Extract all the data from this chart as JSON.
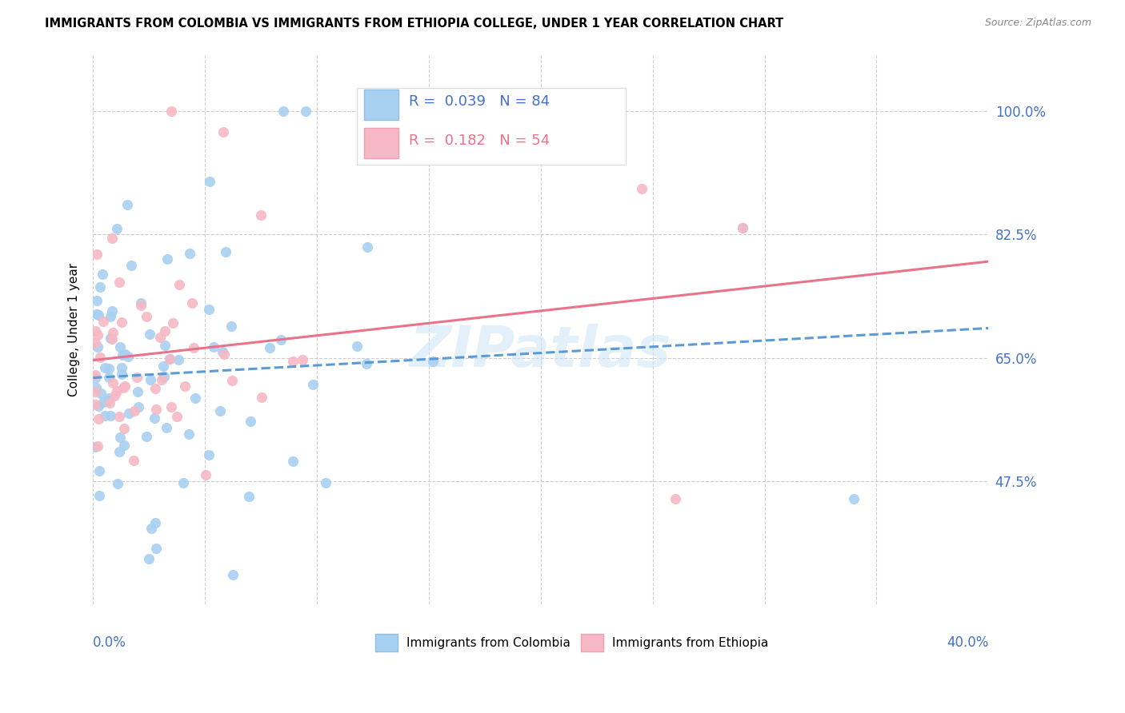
{
  "title": "IMMIGRANTS FROM COLOMBIA VS IMMIGRANTS FROM ETHIOPIA COLLEGE, UNDER 1 YEAR CORRELATION CHART",
  "source": "Source: ZipAtlas.com",
  "ylabel": "College, Under 1 year",
  "ytick_vals": [
    47.5,
    65.0,
    82.5,
    100.0
  ],
  "ytick_labels": [
    "47.5%",
    "65.0%",
    "82.5%",
    "100.0%"
  ],
  "r_colombia": 0.039,
  "n_colombia": 84,
  "r_ethiopia": 0.182,
  "n_ethiopia": 54,
  "color_colombia": "#a8d0f0",
  "color_ethiopia": "#f5b8c4",
  "line_color_colombia": "#5b9bd5",
  "line_color_ethiopia": "#e8738a",
  "watermark": "ZIPatlas",
  "background_color": "#ffffff",
  "x_min": 0.0,
  "x_max": 40.0,
  "y_min": 30.0,
  "y_max": 108.0,
  "colombia_slope": 0.08,
  "colombia_intercept": 62.5,
  "ethiopia_slope": 0.55,
  "ethiopia_intercept": 63.0
}
